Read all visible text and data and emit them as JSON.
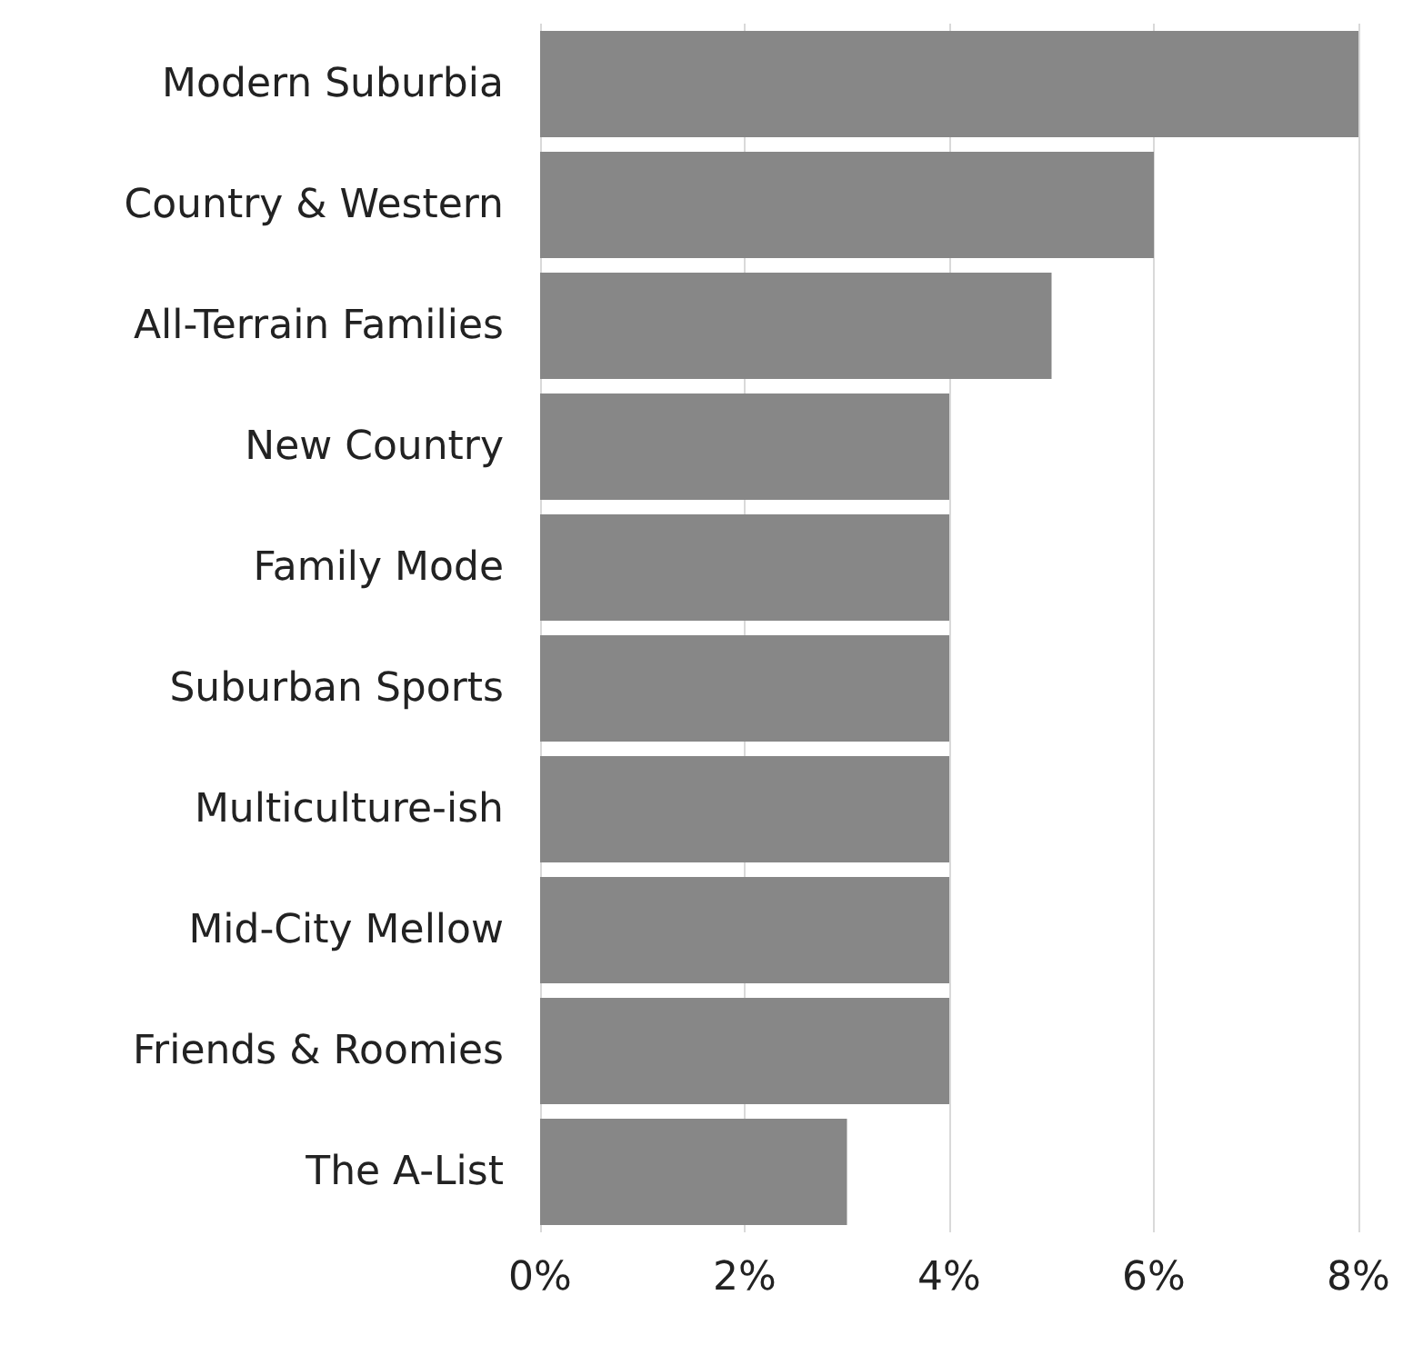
{
  "chart_data": {
    "type": "bar",
    "orientation": "horizontal",
    "categories": [
      "Modern Suburbia",
      "Country & Western",
      "All-Terrain Families",
      "New Country",
      "Family Mode",
      "Suburban Sports",
      "Multiculture-ish",
      "Mid-City Mellow",
      "Friends & Roomies",
      "The A-List"
    ],
    "values": [
      8,
      6,
      5,
      4,
      4,
      4,
      4,
      4,
      4,
      3
    ],
    "color": "#878787",
    "xlim": [
      0,
      8
    ],
    "xticks": [
      {
        "value": 0,
        "label": "0%"
      },
      {
        "value": 2,
        "label": "2%"
      },
      {
        "value": 4,
        "label": "4%"
      },
      {
        "value": 6,
        "label": "6%"
      },
      {
        "value": 8,
        "label": "8%"
      }
    ],
    "grid": "x"
  }
}
